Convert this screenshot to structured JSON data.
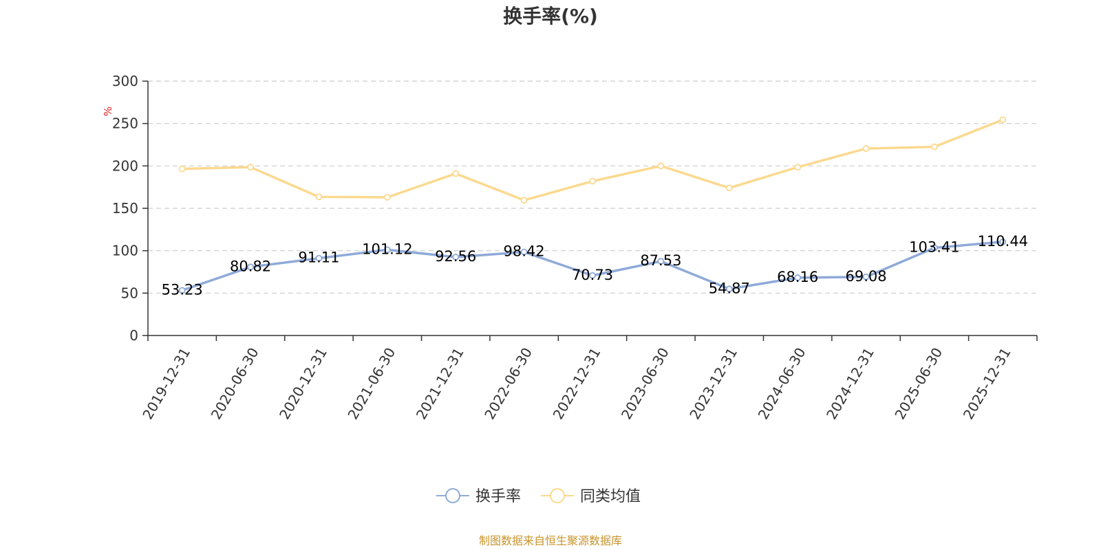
{
  "chart_data": {
    "type": "line",
    "title": "换手率(%)",
    "ylabel": "%",
    "xlabel": "",
    "categories": [
      "2019-12-31",
      "2020-06-30",
      "2020-12-31",
      "2021-06-30",
      "2021-12-31",
      "2022-06-30",
      "2022-12-31",
      "2023-06-30",
      "2023-12-31",
      "2024-06-30",
      "2024-12-31",
      "2025-06-30",
      "2025-12-31"
    ],
    "ylim": [
      0,
      300
    ],
    "yticks": [
      "0",
      "50",
      "100",
      "150",
      "200",
      "250",
      "300"
    ],
    "grid": true,
    "legend_position": "bottom",
    "series": [
      {
        "name": "换手率",
        "color": "#8eaad8",
        "show_labels": true,
        "values": [
          53.23,
          80.82,
          91.11,
          101.12,
          92.56,
          98.42,
          70.73,
          87.53,
          54.87,
          68.16,
          69.08,
          103.41,
          110.44
        ],
        "labels": [
          "53.23",
          "80.82",
          "91.11",
          "101.12",
          "92.56",
          "98.42",
          "70.73",
          "87.53",
          "54.87",
          "68.16",
          "69.08",
          "103.41",
          "110.44"
        ]
      },
      {
        "name": "同类均值",
        "color": "#fbd98f",
        "show_labels": false,
        "values": [
          196.5,
          198.5,
          163.5,
          163,
          191,
          159.5,
          182,
          200,
          174,
          198.5,
          220.5,
          222.5,
          254.5
        ]
      }
    ]
  },
  "source": "制图数据来自恒生聚源数据库"
}
